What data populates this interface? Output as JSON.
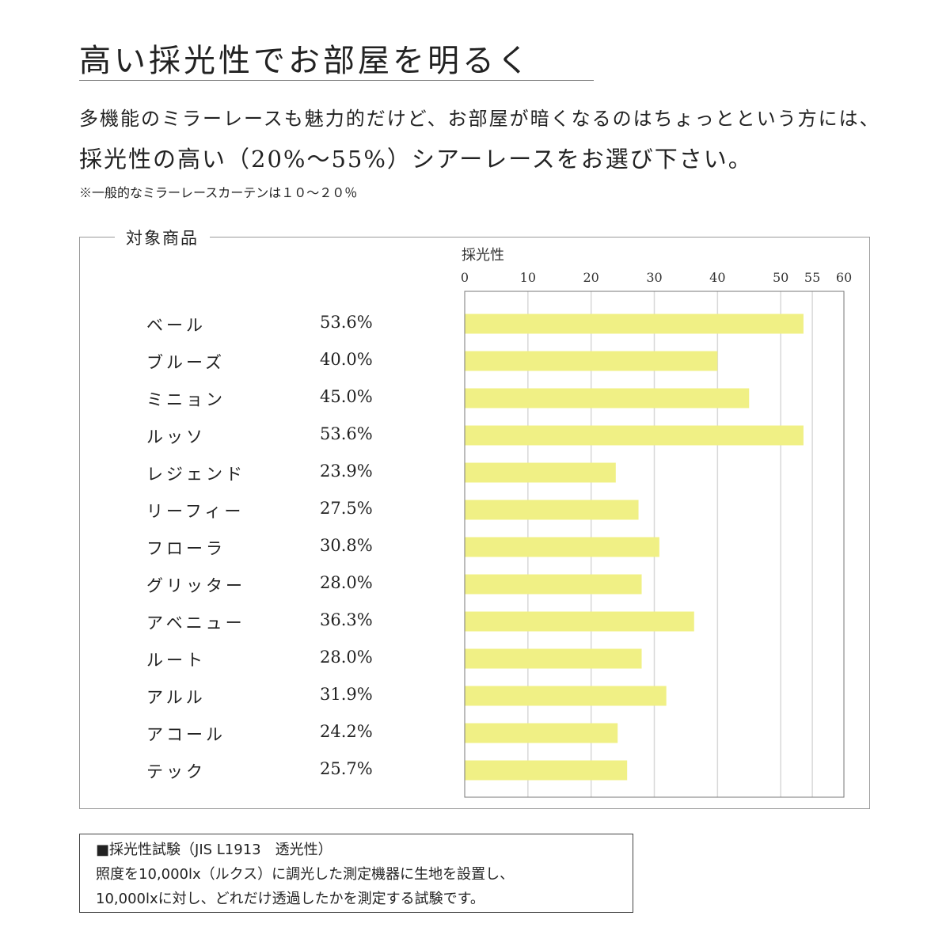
{
  "title": "高い採光性でお部屋を明るく",
  "intro": {
    "line1": "多機能のミラーレースも魅力的だけど、お部屋が暗くなるのはちょっとという方には、",
    "line2_highlight": "採光性の高い",
    "line2_rest": "（20%～55%）シアーレースをお選び下さい。",
    "note": "※一般的なミラーレースカーテンは１０～２０％"
  },
  "panel_label": "対象商品",
  "chart_data": {
    "type": "bar",
    "orientation": "horizontal",
    "xlabel": "採光性",
    "xlim": [
      0,
      60
    ],
    "ticks": [
      0,
      10,
      20,
      30,
      40,
      50,
      55,
      60
    ],
    "grid": true,
    "bar_color": "#f0f085",
    "categories": [
      "ベール",
      "ブルーズ",
      "ミニョン",
      "ルッソ",
      "レジェンド",
      "リーフィー",
      "フローラ",
      "グリッター",
      "アベニュー",
      "ルート",
      "アルル",
      "アコール",
      "テック"
    ],
    "values": [
      53.6,
      40.0,
      45.0,
      53.6,
      23.9,
      27.5,
      30.8,
      28.0,
      36.3,
      28.0,
      31.9,
      24.2,
      25.7
    ],
    "labels": [
      "53.6%",
      "40.0%",
      "45.0%",
      "53.6%",
      "23.9%",
      "27.5%",
      "30.8%",
      "28.0%",
      "36.3%",
      "28.0%",
      "31.9%",
      "24.2%",
      "25.7%"
    ]
  },
  "test_note": {
    "line1": "■採光性試験（JIS L1913　透光性）",
    "line2": "照度を10,000lx（ルクス）に調光した測定機器に生地を設置し、",
    "line3": "10,000lxに対し、どれだけ透過したかを測定する試験です。"
  }
}
